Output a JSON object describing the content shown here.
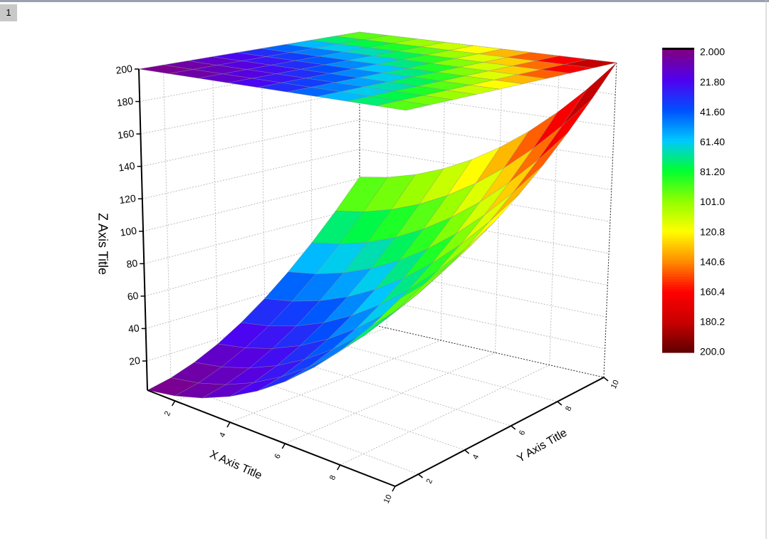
{
  "window": {
    "tab": "1"
  },
  "chart_data": {
    "type": "surface3d",
    "x_title": "X Axis Title",
    "y_title": "Y Axis Title",
    "z_title": "Z Axis Title",
    "x": [
      1,
      2,
      3,
      4,
      5,
      6,
      7,
      8,
      9,
      10
    ],
    "y": [
      1,
      2,
      3,
      4,
      5,
      6,
      7,
      8,
      9,
      10
    ],
    "z": [
      [
        2,
        5,
        10,
        17,
        26,
        37,
        50,
        65,
        82,
        101
      ],
      [
        5,
        8,
        13,
        20,
        29,
        40,
        53,
        68,
        85,
        104
      ],
      [
        10,
        13,
        18,
        25,
        34,
        45,
        58,
        73,
        90,
        109
      ],
      [
        17,
        20,
        25,
        32,
        41,
        52,
        65,
        80,
        97,
        116
      ],
      [
        26,
        29,
        34,
        41,
        50,
        61,
        74,
        89,
        106,
        125
      ],
      [
        37,
        40,
        45,
        52,
        61,
        72,
        85,
        100,
        117,
        136
      ],
      [
        50,
        53,
        58,
        65,
        74,
        85,
        98,
        113,
        130,
        149
      ],
      [
        65,
        68,
        73,
        80,
        89,
        100,
        113,
        128,
        145,
        164
      ],
      [
        82,
        85,
        90,
        97,
        106,
        117,
        130,
        145,
        162,
        181
      ],
      [
        101,
        104,
        109,
        116,
        125,
        136,
        149,
        164,
        181,
        200
      ]
    ],
    "xlim": [
      1,
      10
    ],
    "ylim": [
      1,
      10
    ],
    "zlim": [
      2,
      200
    ],
    "xticks": [
      2,
      4,
      6,
      8,
      10
    ],
    "yticks": [
      2,
      4,
      6,
      8,
      10
    ],
    "zticks": [
      20,
      40,
      60,
      80,
      100,
      120,
      140,
      160,
      180,
      200
    ],
    "grid": true,
    "top_projection": true,
    "colormap": [
      "#80007f",
      "#5000f0",
      "#0050ff",
      "#00c8ff",
      "#00ff30",
      "#90ff00",
      "#ffff00",
      "#ff8c00",
      "#ff0000",
      "#c80000",
      "#600000"
    ],
    "colorbar_ticks": [
      {
        "value": 2,
        "label": "2.000"
      },
      {
        "value": 21.8,
        "label": "21.80"
      },
      {
        "value": 41.6,
        "label": "41.60"
      },
      {
        "value": 61.4,
        "label": "61.40"
      },
      {
        "value": 81.2,
        "label": "81.20"
      },
      {
        "value": 101,
        "label": "101.0"
      },
      {
        "value": 120.8,
        "label": "120.8"
      },
      {
        "value": 140.6,
        "label": "140.6"
      },
      {
        "value": 160.4,
        "label": "160.4"
      },
      {
        "value": 180.2,
        "label": "180.2"
      },
      {
        "value": 200,
        "label": "200.0"
      }
    ]
  }
}
